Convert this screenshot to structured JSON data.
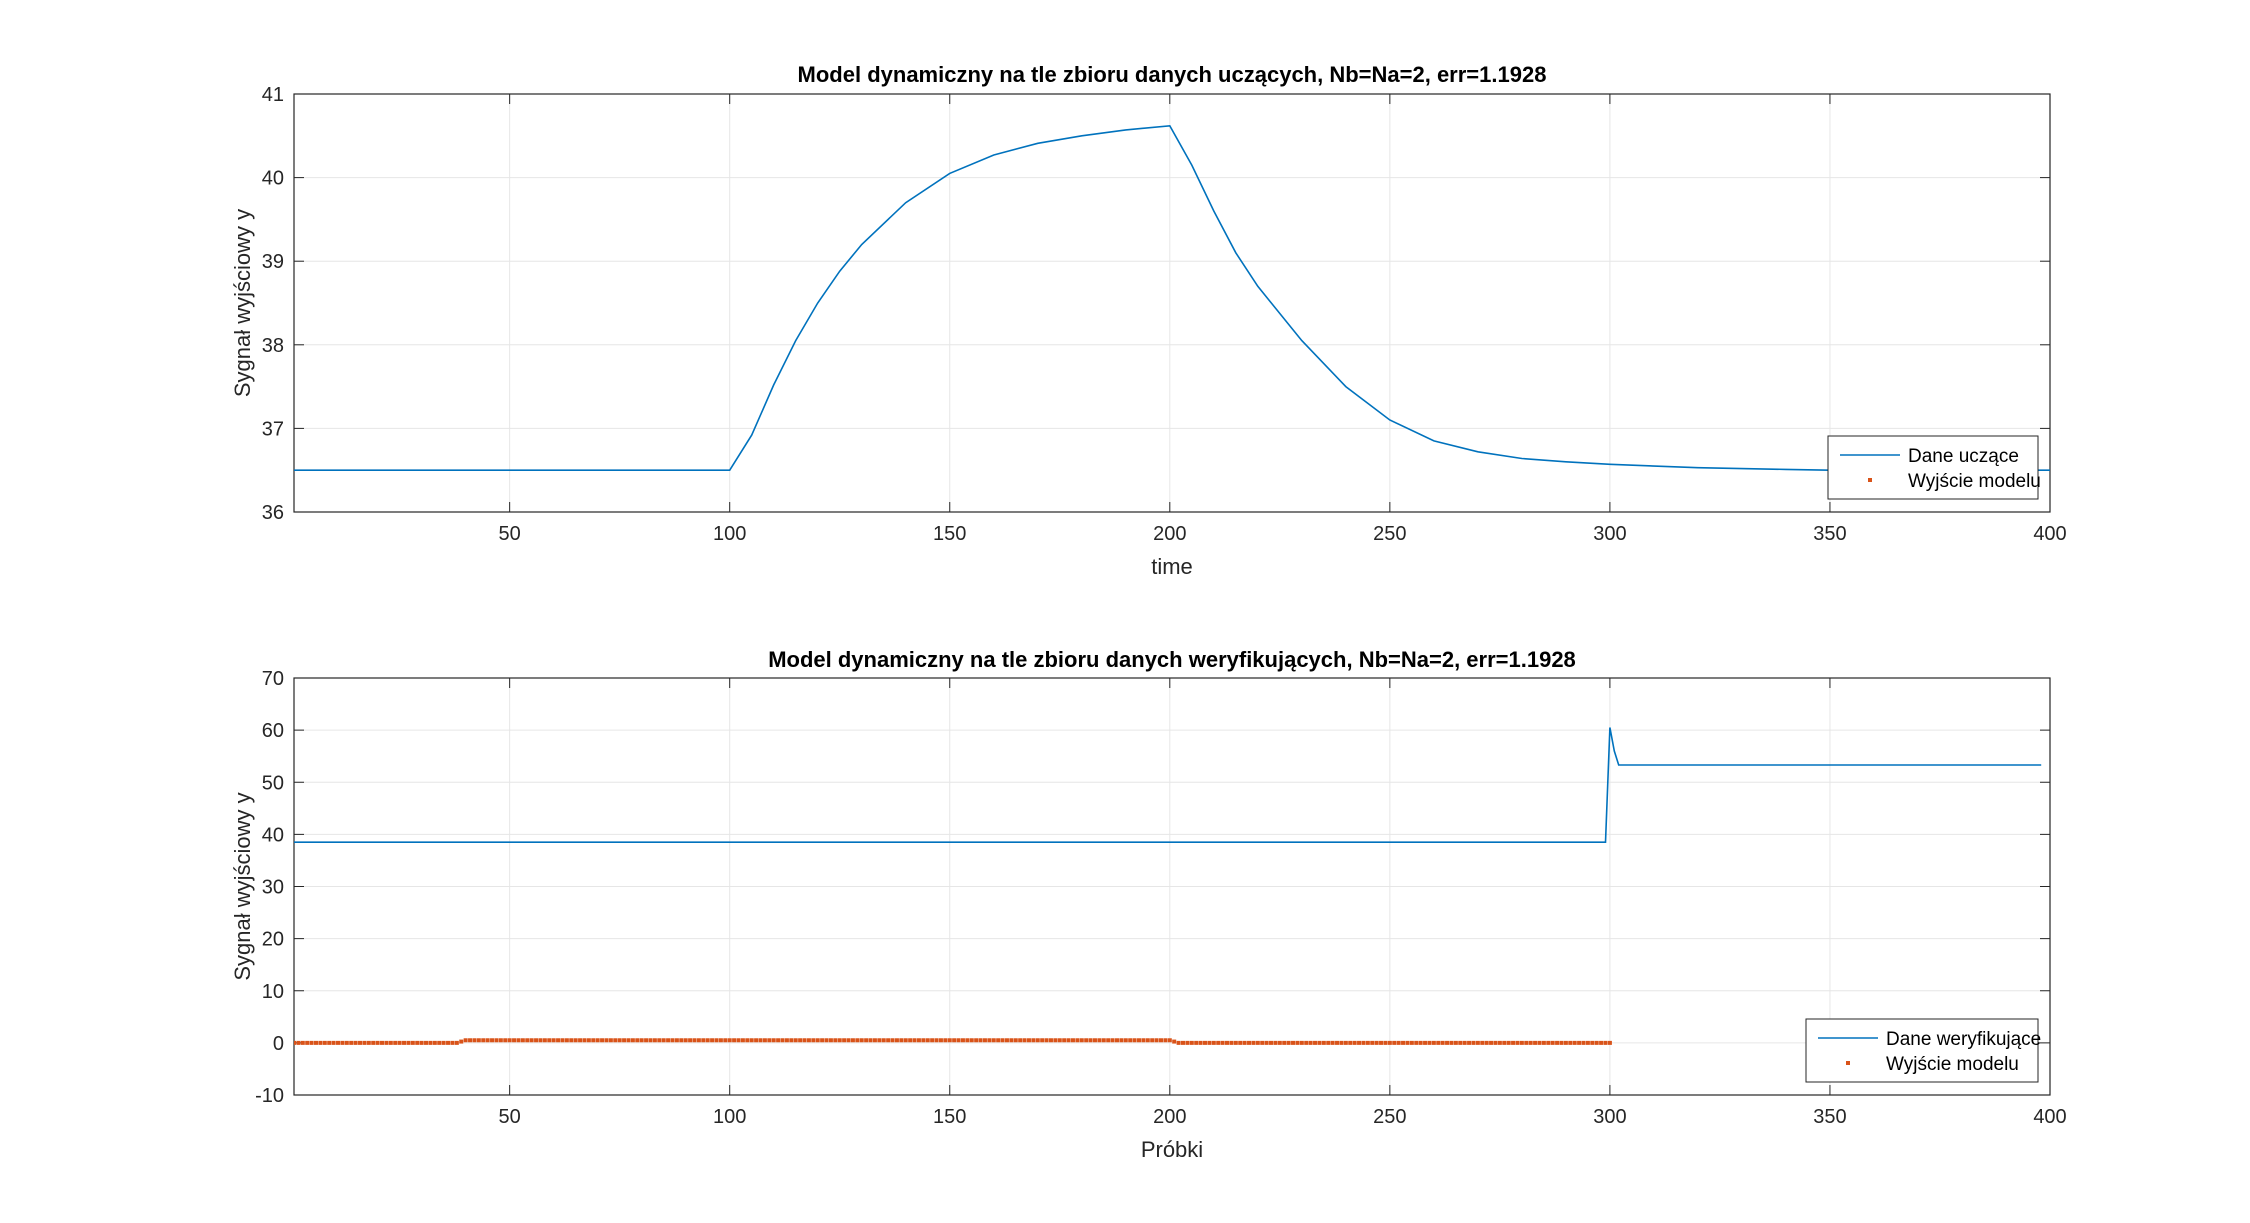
{
  "figure": {
    "background": "#ffffff",
    "colors": {
      "series_line": "#0072BD",
      "model_marker": "#D95319",
      "grid": "#e6e6e6",
      "axis": "#262626"
    }
  },
  "chart_data": [
    {
      "type": "line",
      "title": "Model dynamiczny na tle zbioru danych uczących, Nb=Na=2, err=1.1928",
      "xlabel": "time",
      "ylabel": "Sygnał wyjściowy y",
      "xlim": [
        1,
        400
      ],
      "ylim": [
        36,
        41
      ],
      "xticks": [
        50,
        100,
        150,
        200,
        250,
        300,
        350,
        400
      ],
      "yticks": [
        36,
        37,
        38,
        39,
        40,
        41
      ],
      "grid": true,
      "legend": {
        "placement": "bottom-right",
        "entries": [
          "Dane uczące",
          "Wyjście modelu"
        ]
      },
      "series": [
        {
          "name": "Dane uczące",
          "style": "line",
          "x": [
            1,
            100,
            105,
            110,
            115,
            120,
            125,
            130,
            140,
            150,
            160,
            170,
            180,
            190,
            200,
            205,
            210,
            215,
            220,
            230,
            240,
            250,
            260,
            270,
            280,
            290,
            300,
            320,
            340,
            350,
            360,
            380,
            400
          ],
          "y": [
            36.5,
            36.5,
            36.92,
            37.52,
            38.05,
            38.5,
            38.88,
            39.2,
            39.7,
            40.05,
            40.27,
            40.41,
            40.5,
            40.57,
            40.62,
            40.15,
            39.6,
            39.1,
            38.7,
            38.05,
            37.5,
            37.1,
            36.85,
            36.72,
            36.64,
            36.6,
            36.57,
            36.53,
            36.51,
            36.5,
            36.5,
            36.5,
            36.5
          ]
        },
        {
          "name": "Wyjście modelu",
          "style": "markers",
          "x": [],
          "y": []
        }
      ]
    },
    {
      "type": "line",
      "title": "Model dynamiczny na tle zbioru danych weryfikujących, Nb=Na=2, err=1.1928",
      "xlabel": "Próbki",
      "ylabel": "Sygnał wyjściowy y",
      "xlim": [
        1,
        400
      ],
      "ylim": [
        -10,
        70
      ],
      "xticks": [
        50,
        100,
        150,
        200,
        250,
        300,
        350,
        400
      ],
      "yticks": [
        -10,
        0,
        10,
        20,
        30,
        40,
        50,
        60,
        70
      ],
      "grid": true,
      "legend": {
        "placement": "bottom-right",
        "entries": [
          "Dane weryfikujące",
          "Wyjście modelu"
        ]
      },
      "series": [
        {
          "name": "Dane weryfikujące",
          "style": "line",
          "x": [
            1,
            299,
            300,
            301,
            302,
            303,
            398
          ],
          "y": [
            38.5,
            38.5,
            60.5,
            56,
            53.3,
            53.3,
            53.3
          ]
        },
        {
          "name": "Wyjście modelu",
          "style": "markers",
          "x": [
            1,
            38,
            40,
            100,
            150,
            200,
            202,
            250,
            300
          ],
          "y": [
            0,
            0,
            0.5,
            0.5,
            0.5,
            0.5,
            0,
            0,
            0
          ]
        }
      ]
    }
  ]
}
